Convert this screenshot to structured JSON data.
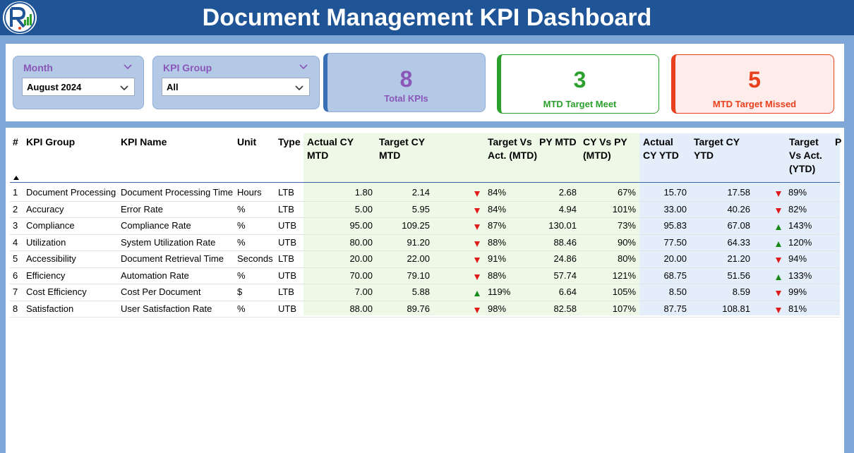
{
  "header": {
    "title": "Document Management KPI Dashboard"
  },
  "filters": {
    "month": {
      "label": "Month",
      "value": "August 2024"
    },
    "kpi_group": {
      "label": "KPI Group",
      "value": "All"
    }
  },
  "cards": {
    "total": {
      "value": "8",
      "label": "Total KPIs",
      "color": "#8a56b8"
    },
    "meet": {
      "value": "3",
      "label": "MTD Target Meet",
      "color": "#2ca02c"
    },
    "missed": {
      "value": "5",
      "label": "MTD Target Missed",
      "color": "#e8401c"
    }
  },
  "colors": {
    "up": "#1a8a1a",
    "down": "#e01b1b",
    "mtd_band": "#eef8e6",
    "ytd_band": "#e4eefb"
  },
  "table": {
    "headers": {
      "num": "#",
      "group": "KPI Group",
      "name": "KPI Name",
      "unit": "Unit",
      "type": "Type",
      "actual_mtd": "Actual CY MTD",
      "target_mtd": "Target CY MTD",
      "tva_mtd": "Target Vs Act. (MTD)",
      "py_mtd": "PY MTD",
      "cy_py_mtd": "CY Vs PY (MTD)",
      "actual_ytd": "Actual CY YTD",
      "target_ytd": "Target CY YTD",
      "tva_ytd": "Target Vs Act. (YTD)",
      "more": "P"
    },
    "rows": [
      {
        "num": "1",
        "group": "Document Processing",
        "name": "Document Processing Time",
        "unit": "Hours",
        "type": "LTB",
        "actual_mtd": "1.80",
        "target_mtd": "2.14",
        "mtd_icon": "arrow-down-icon",
        "tva_mtd": "84%",
        "py_mtd": "2.68",
        "cy_py_mtd": "67%",
        "actual_ytd": "15.70",
        "target_ytd": "17.58",
        "ytd_icon": "arrow-down-icon",
        "tva_ytd": "89%"
      },
      {
        "num": "2",
        "group": "Accuracy",
        "name": "Error Rate",
        "unit": "%",
        "type": "LTB",
        "actual_mtd": "5.00",
        "target_mtd": "5.95",
        "mtd_icon": "arrow-down-icon",
        "tva_mtd": "84%",
        "py_mtd": "4.94",
        "cy_py_mtd": "101%",
        "actual_ytd": "33.00",
        "target_ytd": "40.26",
        "ytd_icon": "arrow-down-icon",
        "tva_ytd": "82%"
      },
      {
        "num": "3",
        "group": "Compliance",
        "name": "Compliance Rate",
        "unit": "%",
        "type": "UTB",
        "actual_mtd": "95.00",
        "target_mtd": "109.25",
        "mtd_icon": "arrow-down-icon",
        "tva_mtd": "87%",
        "py_mtd": "130.01",
        "cy_py_mtd": "73%",
        "actual_ytd": "95.83",
        "target_ytd": "67.08",
        "ytd_icon": "arrow-up-icon",
        "tva_ytd": "143%"
      },
      {
        "num": "4",
        "group": "Utilization",
        "name": "System Utilization Rate",
        "unit": "%",
        "type": "UTB",
        "actual_mtd": "80.00",
        "target_mtd": "91.20",
        "mtd_icon": "arrow-down-icon",
        "tva_mtd": "88%",
        "py_mtd": "88.46",
        "cy_py_mtd": "90%",
        "actual_ytd": "77.50",
        "target_ytd": "64.33",
        "ytd_icon": "arrow-up-icon",
        "tva_ytd": "120%"
      },
      {
        "num": "5",
        "group": "Accessibility",
        "name": "Document Retrieval Time",
        "unit": "Seconds",
        "type": "LTB",
        "actual_mtd": "20.00",
        "target_mtd": "22.00",
        "mtd_icon": "arrow-down-icon",
        "tva_mtd": "91%",
        "py_mtd": "24.86",
        "cy_py_mtd": "80%",
        "actual_ytd": "20.00",
        "target_ytd": "21.20",
        "ytd_icon": "arrow-down-icon",
        "tva_ytd": "94%"
      },
      {
        "num": "6",
        "group": "Efficiency",
        "name": "Automation Rate",
        "unit": "%",
        "type": "UTB",
        "actual_mtd": "70.00",
        "target_mtd": "79.10",
        "mtd_icon": "arrow-down-icon",
        "tva_mtd": "88%",
        "py_mtd": "57.74",
        "cy_py_mtd": "121%",
        "actual_ytd": "68.75",
        "target_ytd": "51.56",
        "ytd_icon": "arrow-up-icon",
        "tva_ytd": "133%"
      },
      {
        "num": "7",
        "group": "Cost Efficiency",
        "name": "Cost Per Document",
        "unit": "$",
        "type": "LTB",
        "actual_mtd": "7.00",
        "target_mtd": "5.88",
        "mtd_icon": "arrow-up-icon",
        "tva_mtd": "119%",
        "py_mtd": "6.64",
        "cy_py_mtd": "105%",
        "actual_ytd": "8.50",
        "target_ytd": "8.59",
        "ytd_icon": "arrow-down-icon",
        "tva_ytd": "99%"
      },
      {
        "num": "8",
        "group": "Satisfaction",
        "name": "User Satisfaction Rate",
        "unit": "%",
        "type": "UTB",
        "actual_mtd": "88.00",
        "target_mtd": "89.76",
        "mtd_icon": "arrow-down-icon",
        "tva_mtd": "98%",
        "py_mtd": "82.58",
        "cy_py_mtd": "107%",
        "actual_ytd": "87.75",
        "target_ytd": "108.81",
        "ytd_icon": "arrow-down-icon",
        "tva_ytd": "81%"
      }
    ]
  }
}
